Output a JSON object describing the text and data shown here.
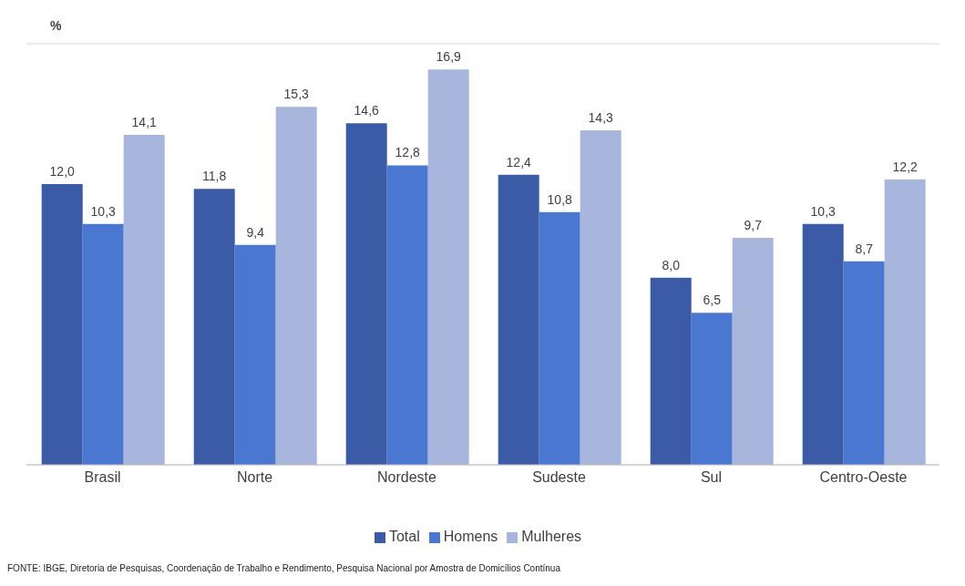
{
  "chart_data": {
    "type": "bar",
    "ylabel": "%",
    "categories": [
      "Brasil",
      "Norte",
      "Nordeste",
      "Sudeste",
      "Sul",
      "Centro-Oeste"
    ],
    "series": [
      {
        "name": "Total",
        "color": "#3b5ba6",
        "values": [
          12.0,
          11.8,
          14.6,
          12.4,
          8.0,
          10.3
        ],
        "value_labels": [
          "12,0",
          "11,8",
          "14,6",
          "12,4",
          "8,0",
          "10,3"
        ]
      },
      {
        "name": "Homens",
        "color": "#4a77cf",
        "values": [
          10.3,
          9.4,
          12.8,
          10.8,
          6.5,
          8.7
        ],
        "value_labels": [
          "10,3",
          "9,4",
          "12,8",
          "10,8",
          "6,5",
          "8,7"
        ]
      },
      {
        "name": "Mulheres",
        "color": "#a8b6dd",
        "values": [
          14.1,
          15.3,
          16.9,
          14.3,
          9.7,
          12.2
        ],
        "value_labels": [
          "14,1",
          "15,3",
          "16,9",
          "14,3",
          "9,7",
          "12,2"
        ]
      }
    ],
    "ylim": [
      0,
      18
    ],
    "tick_labels": "x",
    "grid": "y",
    "legend": "bottom",
    "annotations": [
      "FONTE: IBGE, Diretoria de Pesquisas, Coordenação de Trabalho e Rendimento, Pesquisa Nacional por Amostra de Domicílios Contínua"
    ]
  }
}
